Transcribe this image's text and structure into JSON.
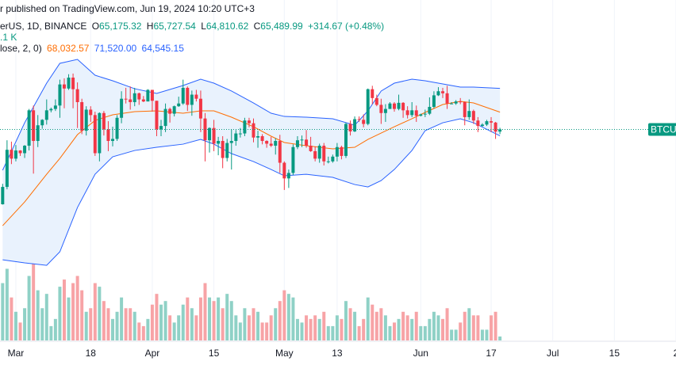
{
  "chart_data": {
    "type": "candlestick",
    "header": {
      "published": "r published on TradingView.com, Jun 19, 2024 10:20 UTC+3",
      "symbol": "erUS, 1D, BINANCE",
      "ohlc": [
        {
          "key": "O",
          "value": "65,175.32"
        },
        {
          "key": "H",
          "value": "65,727.54"
        },
        {
          "key": "L",
          "value": "64,810.62"
        },
        {
          "key": "C",
          "value": "65,489.99"
        }
      ],
      "change": "+314.67 (+0.48%)",
      "volume": ".1 K",
      "bb_params": "lose, 2, 0)",
      "bb_values": [
        "68,032.57",
        "71,520.00",
        "64,545.15"
      ]
    },
    "price_label": "BTCUSD",
    "x": [
      -4,
      -3,
      -2,
      -1,
      0,
      1,
      2,
      3,
      4,
      5,
      6,
      7,
      8,
      9,
      10,
      11,
      12,
      13,
      14,
      15,
      16,
      17,
      18,
      19,
      20,
      21,
      22,
      23,
      24,
      25,
      26,
      27,
      28,
      29,
      30,
      31,
      32,
      33,
      34,
      35,
      36,
      37,
      38,
      39,
      40,
      41,
      42,
      43,
      44,
      45,
      46,
      47,
      48,
      49,
      50,
      51,
      52,
      53,
      54,
      55,
      56,
      57,
      58,
      59,
      60,
      61,
      62,
      63,
      64,
      65,
      66,
      67,
      68,
      69,
      70,
      71,
      72,
      73,
      74,
      75,
      76,
      77,
      78,
      79,
      80,
      81,
      82,
      83,
      84,
      85,
      86,
      87,
      88,
      89,
      90,
      91,
      92,
      93,
      94,
      95,
      96,
      97,
      98,
      99,
      100,
      101,
      102,
      103,
      104,
      105,
      106,
      107,
      108,
      109,
      110
    ],
    "open": [
      51700,
      54500,
      57050,
      62500,
      61200,
      62400,
      62000,
      63100,
      68300,
      63800,
      66100,
      66900,
      68300,
      68500,
      69000,
      72100,
      71500,
      73100,
      71400,
      69500,
      65300,
      68400,
      67600,
      62000,
      67900,
      65500,
      63800,
      64100,
      67200,
      70000,
      69900,
      69500,
      70800,
      69900,
      69600,
      71300,
      69700,
      65500,
      66000,
      68500,
      67800,
      68900,
      69300,
      71600,
      69100,
      70600,
      70000,
      67100,
      63900,
      65700,
      63400,
      63800,
      61300,
      63500,
      63800,
      64900,
      64900,
      66800,
      66400,
      64300,
      64500,
      63800,
      63400,
      63100,
      63800,
      60600,
      58300,
      59100,
      62900,
      63900,
      64000,
      63100,
      62300,
      61200,
      63100,
      60800,
      60800,
      61500,
      62900,
      61600,
      66300,
      65200,
      67000,
      66900,
      66300,
      71400,
      70100,
      69100,
      67900,
      68500,
      69300,
      68500,
      69400,
      68300,
      67600,
      68300,
      67500,
      67700,
      67800,
      68800,
      70500,
      71100,
      70800,
      69300,
      69300,
      69600,
      69500,
      67300,
      68200,
      66800,
      66000,
      66200,
      66700,
      66500,
      65175.32
    ],
    "high": [
      54900,
      57500,
      63900,
      63700,
      63200,
      62450,
      63200,
      68500,
      69000,
      67600,
      67000,
      69900,
      68700,
      69900,
      72800,
      73000,
      73600,
      73700,
      72400,
      70000,
      68900,
      68900,
      68100,
      68000,
      68200,
      66700,
      65900,
      67600,
      71100,
      71600,
      71800,
      71600,
      70900,
      70400,
      71400,
      71300,
      69700,
      66900,
      69300,
      68700,
      69000,
      70300,
      72800,
      71800,
      71200,
      71300,
      71200,
      67900,
      65800,
      66900,
      64400,
      64500,
      64100,
      65500,
      65400,
      65700,
      67200,
      67200,
      67100,
      65300,
      64800,
      63900,
      64400,
      64200,
      64700,
      60800,
      59600,
      63300,
      64500,
      64600,
      65400,
      64400,
      63000,
      63400,
      63500,
      61500,
      61800,
      63500,
      63100,
      66500,
      66800,
      67400,
      67400,
      67700,
      71500,
      71900,
      70600,
      70000,
      69200,
      69500,
      69500,
      70600,
      69500,
      68900,
      69500,
      69000,
      67800,
      68400,
      70200,
      71100,
      71700,
      71600,
      71900,
      69500,
      69800,
      70100,
      69600,
      69900,
      68400,
      67300,
      66400,
      66900,
      67300,
      66600,
      65727.54
    ],
    "low": [
      50900,
      54450,
      56700,
      60400,
      60800,
      61600,
      61300,
      62400,
      59000,
      62900,
      65600,
      66200,
      68000,
      68200,
      67200,
      68600,
      71300,
      68600,
      65700,
      64800,
      64600,
      66600,
      61600,
      60800,
      64600,
      62300,
      63000,
      63800,
      66400,
      69300,
      68400,
      68900,
      69100,
      69500,
      69600,
      68100,
      64500,
      64500,
      65100,
      66500,
      67400,
      68800,
      69100,
      68200,
      67500,
      69600,
      65100,
      60800,
      62100,
      62300,
      61700,
      59800,
      60800,
      59600,
      63100,
      64300,
      64500,
      65800,
      63600,
      62800,
      63300,
      62800,
      62900,
      61800,
      59100,
      56600,
      56900,
      58800,
      62600,
      62900,
      62800,
      62200,
      60800,
      60600,
      60200,
      60500,
      60600,
      60800,
      61100,
      61300,
      64600,
      65100,
      66600,
      65800,
      66100,
      69200,
      68900,
      66300,
      66600,
      68500,
      68100,
      68300,
      67200,
      67100,
      67300,
      66600,
      67400,
      67300,
      67600,
      68600,
      70400,
      70100,
      68500,
      69200,
      69100,
      69200,
      66100,
      66900,
      66300,
      65100,
      65900,
      66000,
      65100,
      64100,
      64810.62
    ],
    "close": [
      54500,
      57050,
      62500,
      61200,
      62400,
      62000,
      63100,
      68300,
      63800,
      66100,
      66900,
      68300,
      68500,
      69000,
      72100,
      71500,
      73100,
      71400,
      69500,
      65300,
      68400,
      67600,
      62000,
      67900,
      65500,
      63800,
      64100,
      67200,
      70000,
      69900,
      69500,
      70800,
      69900,
      69600,
      71300,
      69700,
      65500,
      66000,
      68500,
      67800,
      68900,
      69300,
      71600,
      69100,
      70600,
      70000,
      67100,
      63900,
      65700,
      63400,
      63800,
      61300,
      63500,
      63800,
      64900,
      64900,
      66800,
      66400,
      64300,
      64500,
      63800,
      63400,
      63100,
      63800,
      60600,
      58300,
      59100,
      62900,
      63900,
      64000,
      63100,
      62300,
      61200,
      63100,
      60800,
      60800,
      61500,
      62900,
      61600,
      66300,
      65200,
      67000,
      66900,
      66300,
      71400,
      70100,
      69100,
      67900,
      68500,
      69300,
      68500,
      69400,
      68300,
      67600,
      68300,
      67500,
      67700,
      67800,
      68800,
      70500,
      71100,
      70800,
      69300,
      69300,
      69600,
      69500,
      67300,
      68200,
      66800,
      66000,
      66200,
      66700,
      66500,
      65175.32,
      65489.99
    ],
    "volume": [
      14,
      16,
      20,
      12,
      8,
      5,
      9,
      18,
      22,
      14,
      9,
      13,
      4,
      6,
      15,
      17,
      12,
      16,
      18,
      14,
      8,
      9,
      16,
      15,
      11,
      9,
      6,
      8,
      12,
      9,
      9,
      8,
      5,
      4,
      6,
      10,
      13,
      10,
      11,
      7,
      5,
      7,
      10,
      12,
      9,
      7,
      12,
      16,
      12,
      11,
      12,
      9,
      13,
      11,
      7,
      5,
      9,
      7,
      9,
      8,
      5,
      5,
      7,
      9,
      11,
      14,
      13,
      12,
      6,
      5,
      7,
      6,
      7,
      6,
      8,
      4,
      4,
      7,
      6,
      11,
      9,
      8,
      4,
      6,
      12,
      10,
      8,
      9,
      7,
      4,
      5,
      6,
      8,
      7,
      6,
      8,
      4,
      4,
      6,
      8,
      7,
      6,
      9,
      3,
      3,
      5,
      8,
      9,
      7,
      7,
      3,
      3,
      7,
      8,
      1.1
    ],
    "colors": {
      "up": "#089981",
      "down": "#f23645",
      "volume_up": "#8fd1c6",
      "volume_down": "#f7a3a6",
      "grid": "#f0f3fa"
    },
    "bands": {
      "x": [
        -3,
        2,
        7,
        10,
        14,
        18,
        22,
        27,
        32,
        38,
        42,
        45,
        49,
        54,
        58,
        61,
        66,
        72,
        77,
        80,
        83,
        86,
        90,
        93,
        97,
        101,
        104,
        110
      ],
      "fill": "#e9f2fd",
      "upper": {
        "color": "#2962ff",
        "values": [
          59500,
          66470,
          72290,
          75200,
          75780,
          73450,
          72640,
          71470,
          70780,
          71940,
          72870,
          72290,
          71130,
          69380,
          67870,
          67400,
          67290,
          67060,
          66120,
          68220,
          71130,
          72290,
          72870,
          72640,
          72170,
          71710,
          71710,
          71520
        ]
      },
      "basis": {
        "color": "#ff6d00",
        "values": [
          51350,
          54840,
          58910,
          61240,
          64730,
          66820,
          67640,
          68100,
          68220,
          67870,
          68220,
          68220,
          67290,
          65890,
          64500,
          63570,
          63100,
          62640,
          62870,
          64030,
          64960,
          65890,
          67060,
          67990,
          69150,
          69610,
          69380,
          68032.57
        ]
      },
      "lower": {
        "color": "#2962ff",
        "values": [
          46350,
          45890,
          45540,
          47520,
          54030,
          58910,
          61470,
          62400,
          62870,
          63330,
          64030,
          63330,
          61940,
          60770,
          59610,
          58680,
          58910,
          58450,
          57400,
          57050,
          57980,
          59610,
          62400,
          65310,
          66470,
          67060,
          66470,
          64545.15
        ]
      }
    },
    "xlim": [
      -3.6,
      150
    ],
    "xticks": [
      {
        "value": 0,
        "label": "Mar"
      },
      {
        "value": 17,
        "label": "18"
      },
      {
        "value": 31,
        "label": "Apr"
      },
      {
        "value": 45,
        "label": "15"
      },
      {
        "value": 61,
        "label": "May"
      },
      {
        "value": 73,
        "label": "13"
      },
      {
        "value": 92,
        "label": "Jun"
      },
      {
        "value": 108,
        "label": "17"
      },
      {
        "value": 122,
        "label": "Jul"
      },
      {
        "value": 136,
        "label": "15"
      },
      {
        "value": 150,
        "label": "2"
      }
    ],
    "ylim": [
      34500,
      84500
    ],
    "volume_ylim": [
      0,
      95
    ],
    "grid": true
  }
}
